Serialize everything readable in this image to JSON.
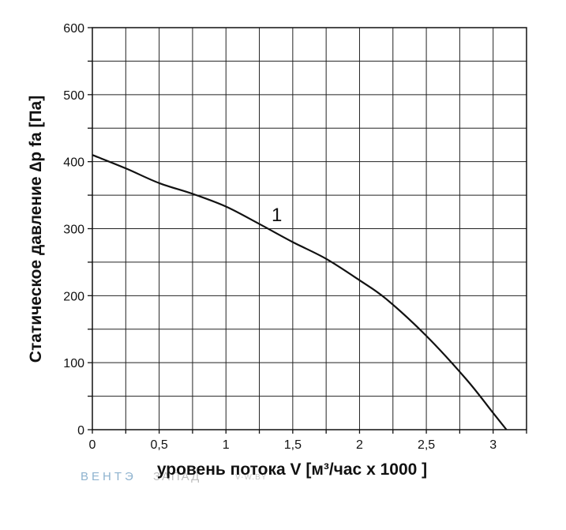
{
  "chart_data": {
    "type": "line",
    "xlabel": "уровень потока  V [м³/час х 1000 ]",
    "ylabel": "Статическое давление  ∆p fa [Па]",
    "xlim": [
      0,
      3.25
    ],
    "ylim": [
      0,
      600
    ],
    "x_ticks": [
      "0",
      "0,5",
      "1",
      "1,5",
      "2",
      "2,5",
      "3"
    ],
    "y_ticks": [
      "0",
      "100",
      "200",
      "300",
      "400",
      "500",
      "600"
    ],
    "grid": true,
    "series": [
      {
        "name": "1",
        "x": [
          0,
          0.25,
          0.5,
          0.75,
          1.0,
          1.25,
          1.5,
          1.75,
          2.0,
          2.2,
          2.5,
          2.8,
          3.0,
          3.1
        ],
        "values": [
          410,
          390,
          368,
          352,
          333,
          307,
          280,
          255,
          223,
          195,
          140,
          75,
          25,
          0
        ]
      }
    ],
    "annotations": [
      "1"
    ]
  },
  "watermark": {
    "part1": "ВЕНТЭ",
    "part2": "ЗАПАД",
    "part3": "V-W.BY"
  }
}
